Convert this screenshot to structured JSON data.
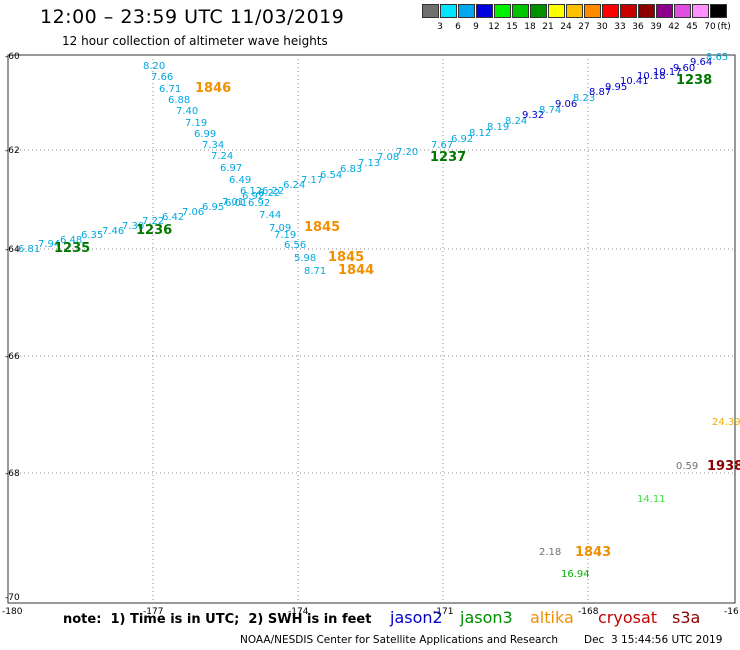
{
  "header": {
    "title": "12:00 – 23:59 UTC 11/03/2019",
    "subtitle": "12 hour collection of altimeter wave heights"
  },
  "color_scale": {
    "unit": "(ft)",
    "swatches": [
      {
        "label": "3",
        "color": "#707070"
      },
      {
        "label": "6",
        "color": "#00e4ff"
      },
      {
        "label": "9",
        "color": "#00a8f0"
      },
      {
        "label": "12",
        "color": "#0000e0"
      },
      {
        "label": "15",
        "color": "#00f000"
      },
      {
        "label": "18",
        "color": "#00c400"
      },
      {
        "label": "21",
        "color": "#009000"
      },
      {
        "label": "24",
        "color": "#ffff00"
      },
      {
        "label": "27",
        "color": "#ffc000"
      },
      {
        "label": "30",
        "color": "#ff8c00"
      },
      {
        "label": "33",
        "color": "#ff0000"
      },
      {
        "label": "36",
        "color": "#c80000"
      },
      {
        "label": "39",
        "color": "#8c0000"
      },
      {
        "label": "42",
        "color": "#8c008c"
      },
      {
        "label": "45",
        "color": "#e050e0"
      },
      {
        "label": "70",
        "color": "#ff90ff"
      },
      {
        "label": "",
        "color": "#000000"
      }
    ]
  },
  "axes": {
    "lat_labels": [
      "-60",
      "-62",
      "-64",
      "-66",
      "-68",
      "-70"
    ],
    "lon_labels": [
      "-180",
      "-177",
      "-174",
      "-171",
      "-168",
      "-16"
    ]
  },
  "tracks": [
    {
      "id": "jason3-pass-1235",
      "time": "1235",
      "time_color": "#007800",
      "values": [
        "6.81",
        "7.94",
        "6.48",
        "6.35",
        "7.46",
        "7.30",
        "7.22",
        "6.42",
        "7.06",
        "6.95",
        "7.01",
        "6.92",
        "6.22",
        "6.24",
        "7.17",
        "6.54",
        "6.83",
        "7.13",
        "7.08",
        "7.20",
        "7.67",
        "6.92",
        "8.12",
        "8.19",
        "8.24",
        "9.32",
        "8.74",
        "9.06",
        "8.23",
        "8.87",
        "9.95",
        "10.41",
        "10.18",
        "10.17",
        "9.60",
        "9.64",
        "8.65"
      ],
      "times": [
        "1236",
        "1237",
        "1238"
      ]
    },
    {
      "id": "jason3-pass-1846",
      "time": "1846",
      "time_color": "#f09000",
      "values": [
        "8.20",
        "7.66",
        "6.71",
        "6.88",
        "7.40",
        "7.19",
        "6.99",
        "7.34",
        "7.24",
        "6.97",
        "6.49",
        "6.12",
        "6.22",
        "6.01",
        "6.92",
        "7.44",
        "7.09",
        "7.19",
        "6.56",
        "5.98",
        "8.71"
      ],
      "times": [
        "1845",
        "1845",
        "1844"
      ]
    }
  ],
  "spot_values": [
    {
      "text": "24.39",
      "color": "#e8b000"
    },
    {
      "text": "0.59",
      "color": "#707070"
    },
    {
      "text": "1938",
      "color": "#8c0000"
    },
    {
      "text": "14.11",
      "color": "#40e040"
    },
    {
      "text": "2.18",
      "color": "#707070"
    },
    {
      "text": "1843",
      "color": "#f09000"
    },
    {
      "text": "16.94",
      "color": "#00b000"
    }
  ],
  "footer": {
    "note": "note:  1) Time is in UTC;  2) SWH is in feet",
    "legend": [
      {
        "label": "jason2",
        "color": "#0000c8"
      },
      {
        "label": "jason3",
        "color": "#008c00"
      },
      {
        "label": "altika",
        "color": "#f09000"
      },
      {
        "label": "cryosat",
        "color": "#c80000"
      },
      {
        "label": "s3a",
        "color": "#8c0000"
      }
    ],
    "credit": "NOAA/NESDIS Center for Satellite Applications and Research",
    "timestamp": "Dec  3 15:44:56 UTC 2019"
  }
}
